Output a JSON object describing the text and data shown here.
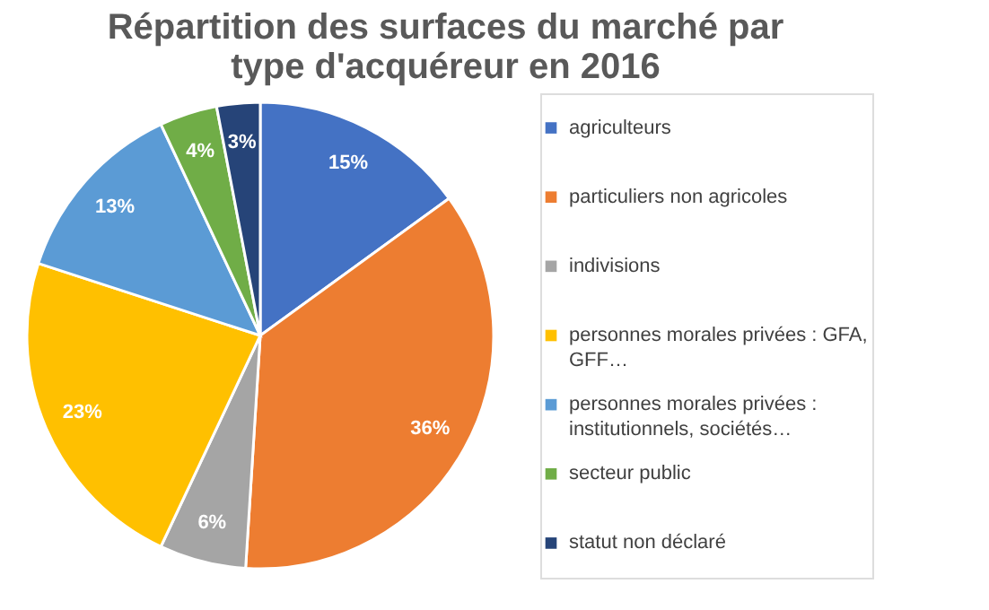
{
  "chart_data": {
    "type": "pie",
    "title": "Répartition des surfaces du marché par type d'acquéreur en 2016",
    "categories": [
      "agriculteurs",
      "particuliers non agricoles",
      "indivisions",
      "personnes morales privées : GFA, GFF…",
      "personnes morales privées : institutionnels, sociétés…",
      "secteur public",
      "statut non déclaré"
    ],
    "values": [
      15,
      36,
      6,
      23,
      13,
      4,
      3
    ],
    "value_labels": [
      "15%",
      "36%",
      "6%",
      "23%",
      "13%",
      "4%",
      "3%"
    ],
    "colors": [
      "#4472c4",
      "#ed7d31",
      "#a5a5a5",
      "#ffc000",
      "#5b9bd5",
      "#70ad47",
      "#264478"
    ],
    "legend": "right"
  }
}
